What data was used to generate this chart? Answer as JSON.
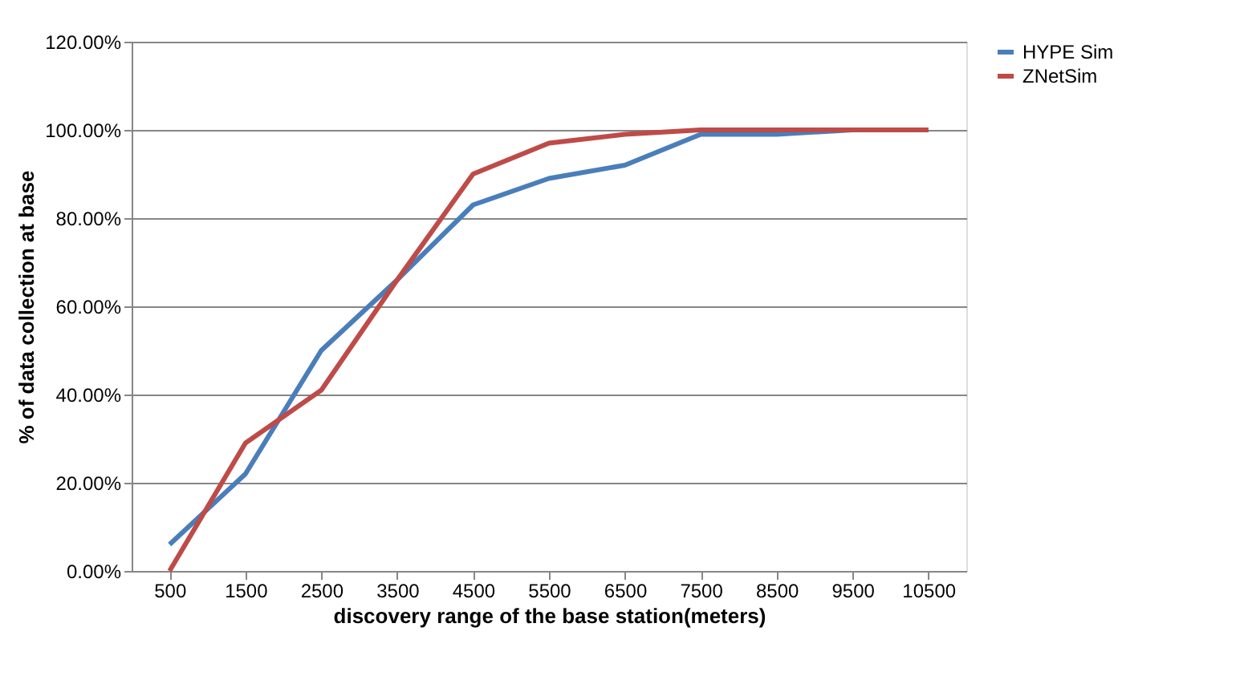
{
  "chart_data": {
    "type": "line",
    "xlabel": "discovery range of the base station(meters)",
    "ylabel": "% of data collection at base",
    "categories": [
      "500",
      "1500",
      "2500",
      "3500",
      "4500",
      "5500",
      "6500",
      "7500",
      "8500",
      "9500",
      "10500"
    ],
    "series": [
      {
        "name": "HYPE Sim",
        "color": "#4a7ebb",
        "values": [
          6,
          22,
          50,
          66,
          83,
          89,
          92,
          99,
          99,
          100,
          100
        ]
      },
      {
        "name": "ZNetSim",
        "color": "#be4b48",
        "values": [
          0,
          29,
          41,
          66,
          90,
          97,
          99,
          100,
          100,
          100,
          100
        ]
      }
    ],
    "ylim": [
      0,
      120
    ],
    "yticks": [
      {
        "value": 0,
        "label": "0.00%"
      },
      {
        "value": 20,
        "label": "20.00%"
      },
      {
        "value": 40,
        "label": "40.00%"
      },
      {
        "value": 60,
        "label": "60.00%"
      },
      {
        "value": 80,
        "label": "80.00%"
      },
      {
        "value": 100,
        "label": "100.00%"
      },
      {
        "value": 120,
        "label": "120.00%"
      }
    ],
    "grid": "y",
    "legend": "right",
    "marker": "none",
    "line_style": "solid"
  }
}
